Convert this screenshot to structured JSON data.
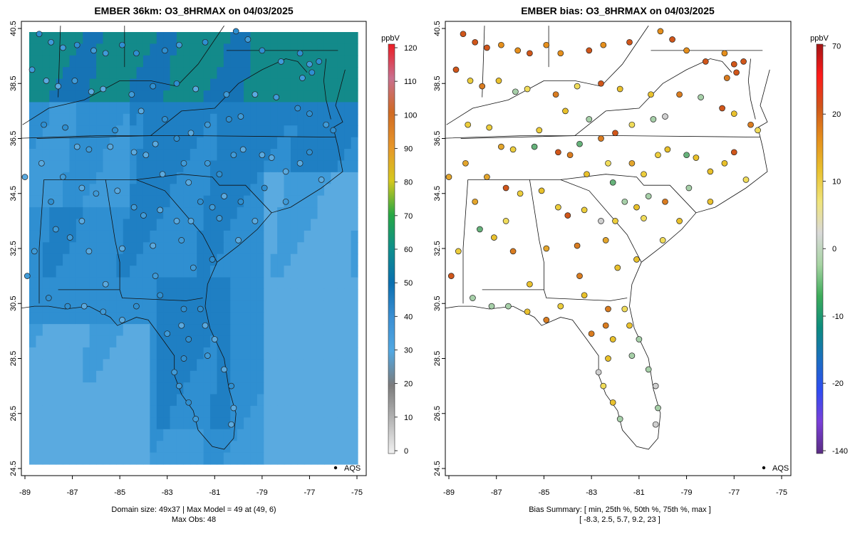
{
  "chart_data": [
    {
      "type": "map",
      "title": "EMBER 36km: O3_8HRMAX on 04/03/2025",
      "xlim": [
        -89,
        -75
      ],
      "ylim": [
        24.5,
        40.5
      ],
      "x_ticks": [
        "-89",
        "-87",
        "-85",
        "-83",
        "-81",
        "-79",
        "-77",
        "-75"
      ],
      "y_ticks": [
        "24.5",
        "26.5",
        "28.5",
        "30.5",
        "32.5",
        "34.5",
        "36.5",
        "38.5",
        "40.5"
      ],
      "colorbar": {
        "unit": "ppbV",
        "range": [
          0,
          120
        ],
        "ticks": [
          "0",
          "10",
          "20",
          "30",
          "40",
          "50",
          "60",
          "70",
          "80",
          "90",
          "100",
          "110",
          "120"
        ],
        "stops": [
          "#f2f2f2",
          "#b5b5b5",
          "#7c7c7c",
          "#52a8e2",
          "#3b8fd3",
          "#0a6fb0",
          "#0f8f8c",
          "#27a844",
          "#d6c81e",
          "#e7962a",
          "#d06a23",
          "#c9708f",
          "#ec1c24"
        ]
      },
      "legend": "AQS",
      "legend_position": "bottom-right",
      "footer": [
        "Domain size: 49x37 | Max Model = 49 at (49, 6)",
        "Max Obs: 48"
      ],
      "values": "model gridded field (ppbV) with AQS station observations overlaid"
    },
    {
      "type": "map",
      "title": "EMBER bias: O3_8HRMAX on 04/03/2025",
      "xlim": [
        -89,
        -75
      ],
      "ylim": [
        24.5,
        40.5
      ],
      "x_ticks": [
        "-89",
        "-87",
        "-85",
        "-83",
        "-81",
        "-79",
        "-77",
        "-75"
      ],
      "y_ticks": [
        "24.5",
        "26.5",
        "28.5",
        "30.5",
        "32.5",
        "34.5",
        "36.5",
        "38.5",
        "40.5"
      ],
      "colorbar": {
        "unit": "ppbV",
        "ticks": [
          "-140",
          "-20",
          "-10",
          "0",
          "10",
          "20",
          "70"
        ],
        "stops": [
          "#5a2d82",
          "#7a3fd8",
          "#2f4cf2",
          "#1a6fc0",
          "#0c8c7e",
          "#3dac5a",
          "#a7d4a3",
          "#d9d9d9",
          "#f0e47a",
          "#e9c12e",
          "#e58f1c",
          "#d0561a",
          "#ff1a1a",
          "#a31515"
        ]
      },
      "legend": "AQS",
      "legend_position": "bottom-right",
      "footer": [
        "Bias Summary: [ min, 25th %, 50th %, 75th %, max ]",
        "[ -8.3,   2.5,   5.7,   9.2,   23 ]"
      ],
      "bias_summary": {
        "min": -8.3,
        "p25": 2.5,
        "p50": 5.7,
        "p75": 9.2,
        "max": 23
      },
      "values": "model minus observed bias at AQS stations (ppbV)"
    }
  ]
}
